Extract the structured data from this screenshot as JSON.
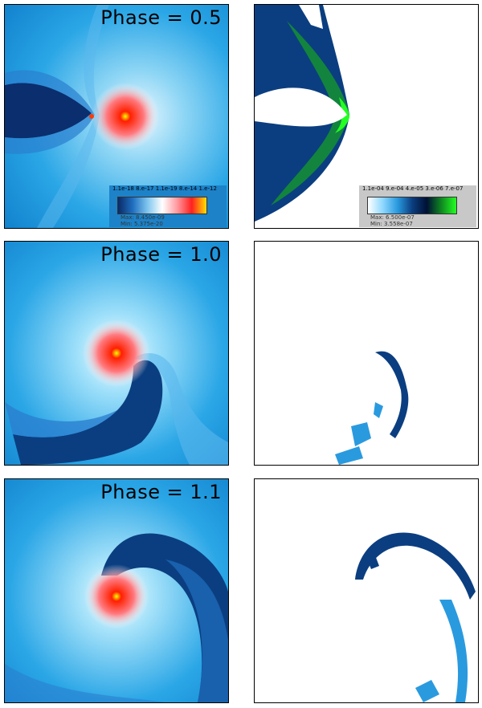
{
  "panels": [
    {
      "label": "Phase = 0.5",
      "colorbar": {
        "ticks": "1.1e-18  8.e-17  1.1e-19  8.e-14  1.e-12",
        "max": "Max: 8.450e-09",
        "min": "Min: 5.375e-20",
        "colors": [
          "#0a2a66",
          "#1f6fc0",
          "#7fc6ef",
          "#ffffff",
          "#ff9aa0",
          "#ff2020",
          "#ffe000"
        ]
      }
    },
    {
      "label": "",
      "colorbar": {
        "ticks": "1.1e-04  9.e-04  4.e-05  3.e-06  7.e-07",
        "max": "Max: 6.500e-07",
        "min": "Min: 3.558e-07",
        "colors": [
          "#ffffff",
          "#8fd8ff",
          "#2a9adf",
          "#0b3e80",
          "#001033",
          "#0f8a20",
          "#22ff22"
        ]
      }
    },
    {
      "label": "Phase = 1.0"
    },
    {
      "label": ""
    },
    {
      "label": "Phase = 1.1"
    },
    {
      "label": ""
    }
  ]
}
